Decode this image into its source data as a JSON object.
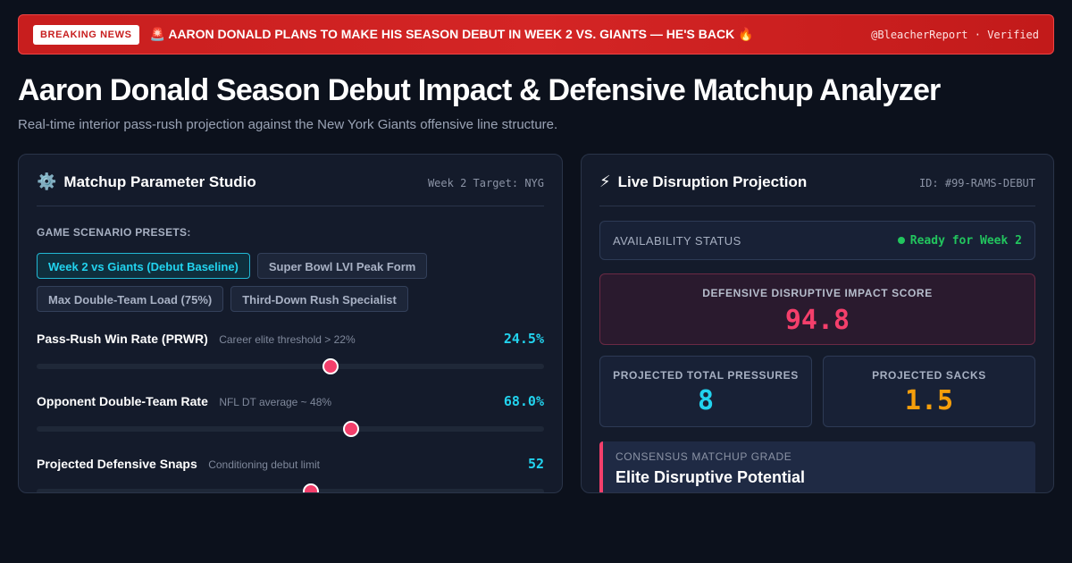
{
  "banner": {
    "badge": "BREAKING NEWS",
    "headline": "🚨 AARON DONALD PLANS TO MAKE HIS SEASON DEBUT IN WEEK 2 VS. GIANTS — HE'S BACK 🔥",
    "source": "@BleacherReport · Verified"
  },
  "page": {
    "title": "Aaron Donald Season Debut Impact & Defensive Matchup Analyzer",
    "subtitle": "Real-time interior pass-rush projection against the New York Giants offensive line structure."
  },
  "studio": {
    "icon": "⚙️",
    "title": "Matchup Parameter Studio",
    "meta": "Week 2 Target: NYG",
    "presets_label": "GAME SCENARIO PRESETS:",
    "presets": [
      {
        "label": "Week 2 vs Giants (Debut Baseline)",
        "active": true
      },
      {
        "label": "Super Bowl LVI Peak Form",
        "active": false
      },
      {
        "label": "Max Double-Team Load (75%)",
        "active": false
      },
      {
        "label": "Third-Down Rush Specialist",
        "active": false
      }
    ],
    "params": [
      {
        "name": "Pass-Rush Win Rate (PRWR)",
        "hint": "Career elite threshold > 22%",
        "value": "24.5%",
        "level": 0.58
      },
      {
        "name": "Opponent Double-Team Rate",
        "hint": "NFL DT average ~ 48%",
        "value": "68.0%",
        "level": 0.62
      },
      {
        "name": "Projected Defensive Snaps",
        "hint": "Conditioning debut limit",
        "value": "52",
        "level": 0.54
      }
    ]
  },
  "projection": {
    "icon": "⚡",
    "title": "Live Disruption Projection",
    "meta": "ID: #99-RAMS-DEBUT",
    "status_label": "AVAILABILITY STATUS",
    "status_value": "Ready for Week 2",
    "score_label": "DEFENSIVE DISRUPTIVE IMPACT SCORE",
    "score_value": "94.8",
    "pressures_label": "PROJECTED TOTAL PRESSURES",
    "pressures_value": "8",
    "sacks_label": "PROJECTED SACKS",
    "sacks_value": "1.5",
    "grade_label": "CONSENSUS MATCHUP GRADE",
    "grade_value": "Elite Disruptive Potential"
  },
  "colors": {
    "accent_cyan": "#22d3ee",
    "accent_pink": "#f43f6b",
    "accent_amber": "#f59e0b",
    "status_green": "#22c55e",
    "banner_red": "#c81e1e"
  }
}
